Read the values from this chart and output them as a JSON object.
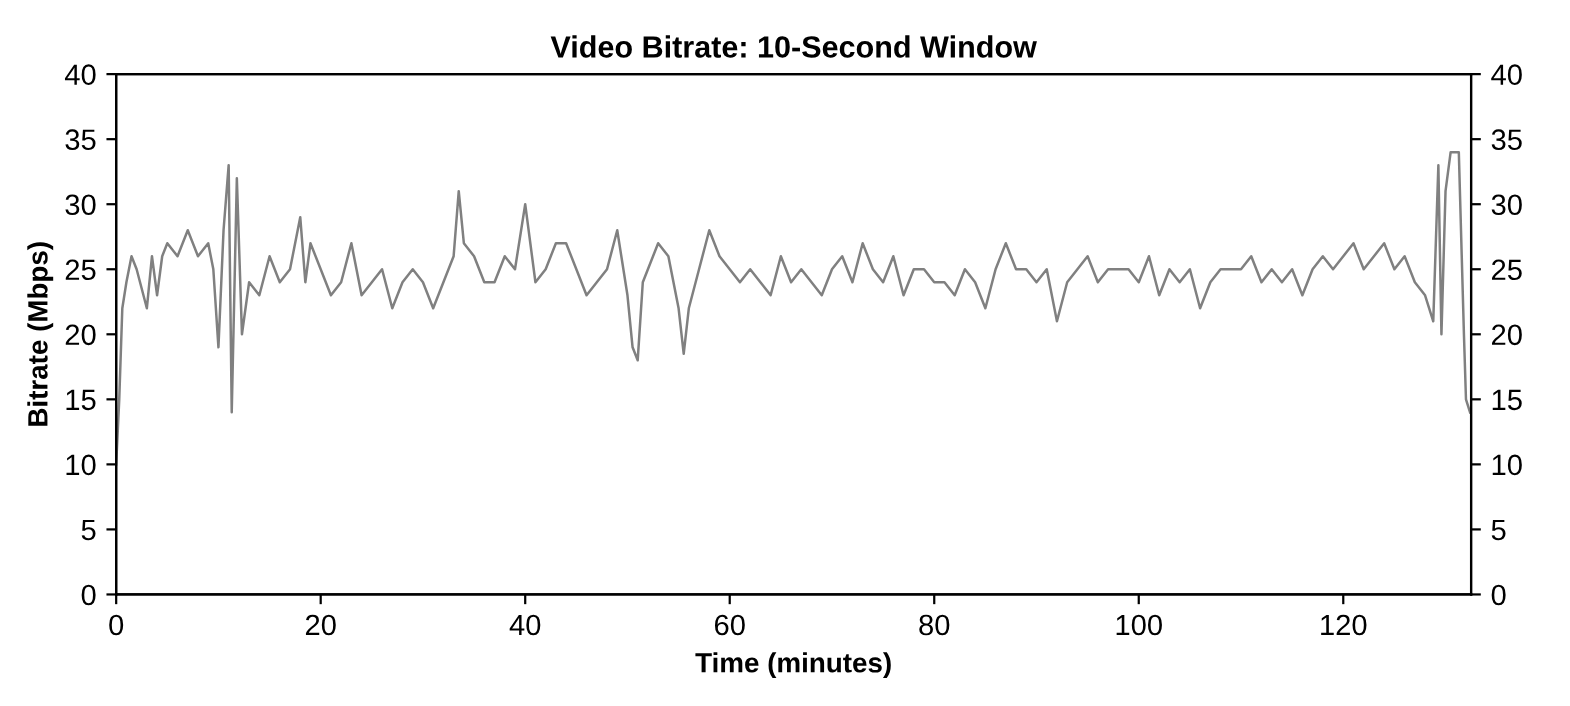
{
  "chart_data": {
    "type": "line",
    "title": "Video Bitrate: 10-Second Window",
    "xlabel": "Time (minutes)",
    "ylabel": "Bitrate (Mbps)",
    "x": [
      0,
      0.3,
      0.6,
      1,
      1.5,
      2,
      3,
      3.5,
      4,
      4.5,
      5,
      6,
      7,
      8,
      9,
      9.5,
      10,
      10.5,
      11,
      11.3,
      11.8,
      12.3,
      13,
      14,
      15,
      16,
      17,
      18,
      18.5,
      19,
      20,
      21,
      22,
      23,
      24,
      25,
      26,
      27,
      28,
      29,
      30,
      31,
      32,
      33,
      33.5,
      34,
      35,
      36,
      37,
      38,
      39,
      40,
      40.5,
      41,
      42,
      43,
      44,
      45,
      46,
      47,
      48,
      49,
      50,
      50.5,
      51,
      51.5,
      52,
      53,
      54,
      55,
      55.5,
      56,
      57,
      58,
      59,
      60,
      61,
      62,
      63,
      64,
      65,
      66,
      67,
      68,
      69,
      70,
      71,
      72,
      73,
      74,
      75,
      76,
      77,
      78,
      79,
      80,
      81,
      82,
      83,
      84,
      85,
      86,
      87,
      88,
      89,
      90,
      91,
      92,
      93,
      95,
      96,
      97,
      99,
      100,
      101,
      102,
      103,
      104,
      105,
      106,
      107,
      108,
      110,
      111,
      112,
      113,
      114,
      115,
      116,
      117,
      118,
      119,
      120,
      121,
      122,
      123,
      124,
      125,
      126,
      127,
      128,
      128.8,
      129.3,
      129.6,
      130,
      130.5,
      131.3,
      131.8,
      132,
      132.4
    ],
    "series": [
      {
        "color": "#808080",
        "values": [
          10,
          15,
          22,
          24,
          26,
          25,
          22,
          26,
          23,
          26,
          27,
          26,
          28,
          26,
          27,
          25,
          19,
          28,
          33,
          14,
          32,
          20,
          24,
          23,
          26,
          24,
          25,
          29,
          24,
          27,
          25,
          23,
          24,
          27,
          23,
          24,
          25,
          22,
          24,
          25,
          24,
          22,
          24,
          26,
          31,
          27,
          26,
          24,
          24,
          26,
          25,
          30,
          27,
          24,
          25,
          27,
          27,
          25,
          23,
          24,
          25,
          28,
          23,
          19,
          18,
          24,
          25,
          27,
          26,
          22,
          18.5,
          22,
          25,
          28,
          26,
          25,
          24,
          25,
          24,
          23,
          26,
          24,
          25,
          24,
          23,
          25,
          26,
          24,
          27,
          25,
          24,
          26,
          23,
          25,
          25,
          24,
          24,
          23,
          25,
          24,
          22,
          25,
          27,
          25,
          25,
          24,
          25,
          21,
          24,
          26,
          24,
          25,
          25,
          24,
          26,
          23,
          25,
          24,
          25,
          22,
          24,
          25,
          25,
          26,
          24,
          25,
          24,
          25,
          23,
          25,
          26,
          25,
          26,
          27,
          25,
          26,
          27,
          25,
          26,
          24,
          23,
          21,
          33,
          20,
          31,
          34,
          34,
          20,
          15,
          14
        ]
      }
    ],
    "xlim": [
      0,
      132.5
    ],
    "xticks": [
      0,
      20,
      40,
      60,
      80,
      100,
      120
    ],
    "ylim": [
      0,
      40
    ],
    "yticks": [
      0,
      5,
      10,
      15,
      20,
      25,
      30,
      35,
      40
    ],
    "y2lim": [
      0,
      40
    ],
    "y2ticks": [
      0,
      5,
      10,
      15,
      20,
      25,
      30,
      35,
      40
    ],
    "grid": false,
    "legend": false,
    "marker": "none",
    "line_style": "solid"
  }
}
